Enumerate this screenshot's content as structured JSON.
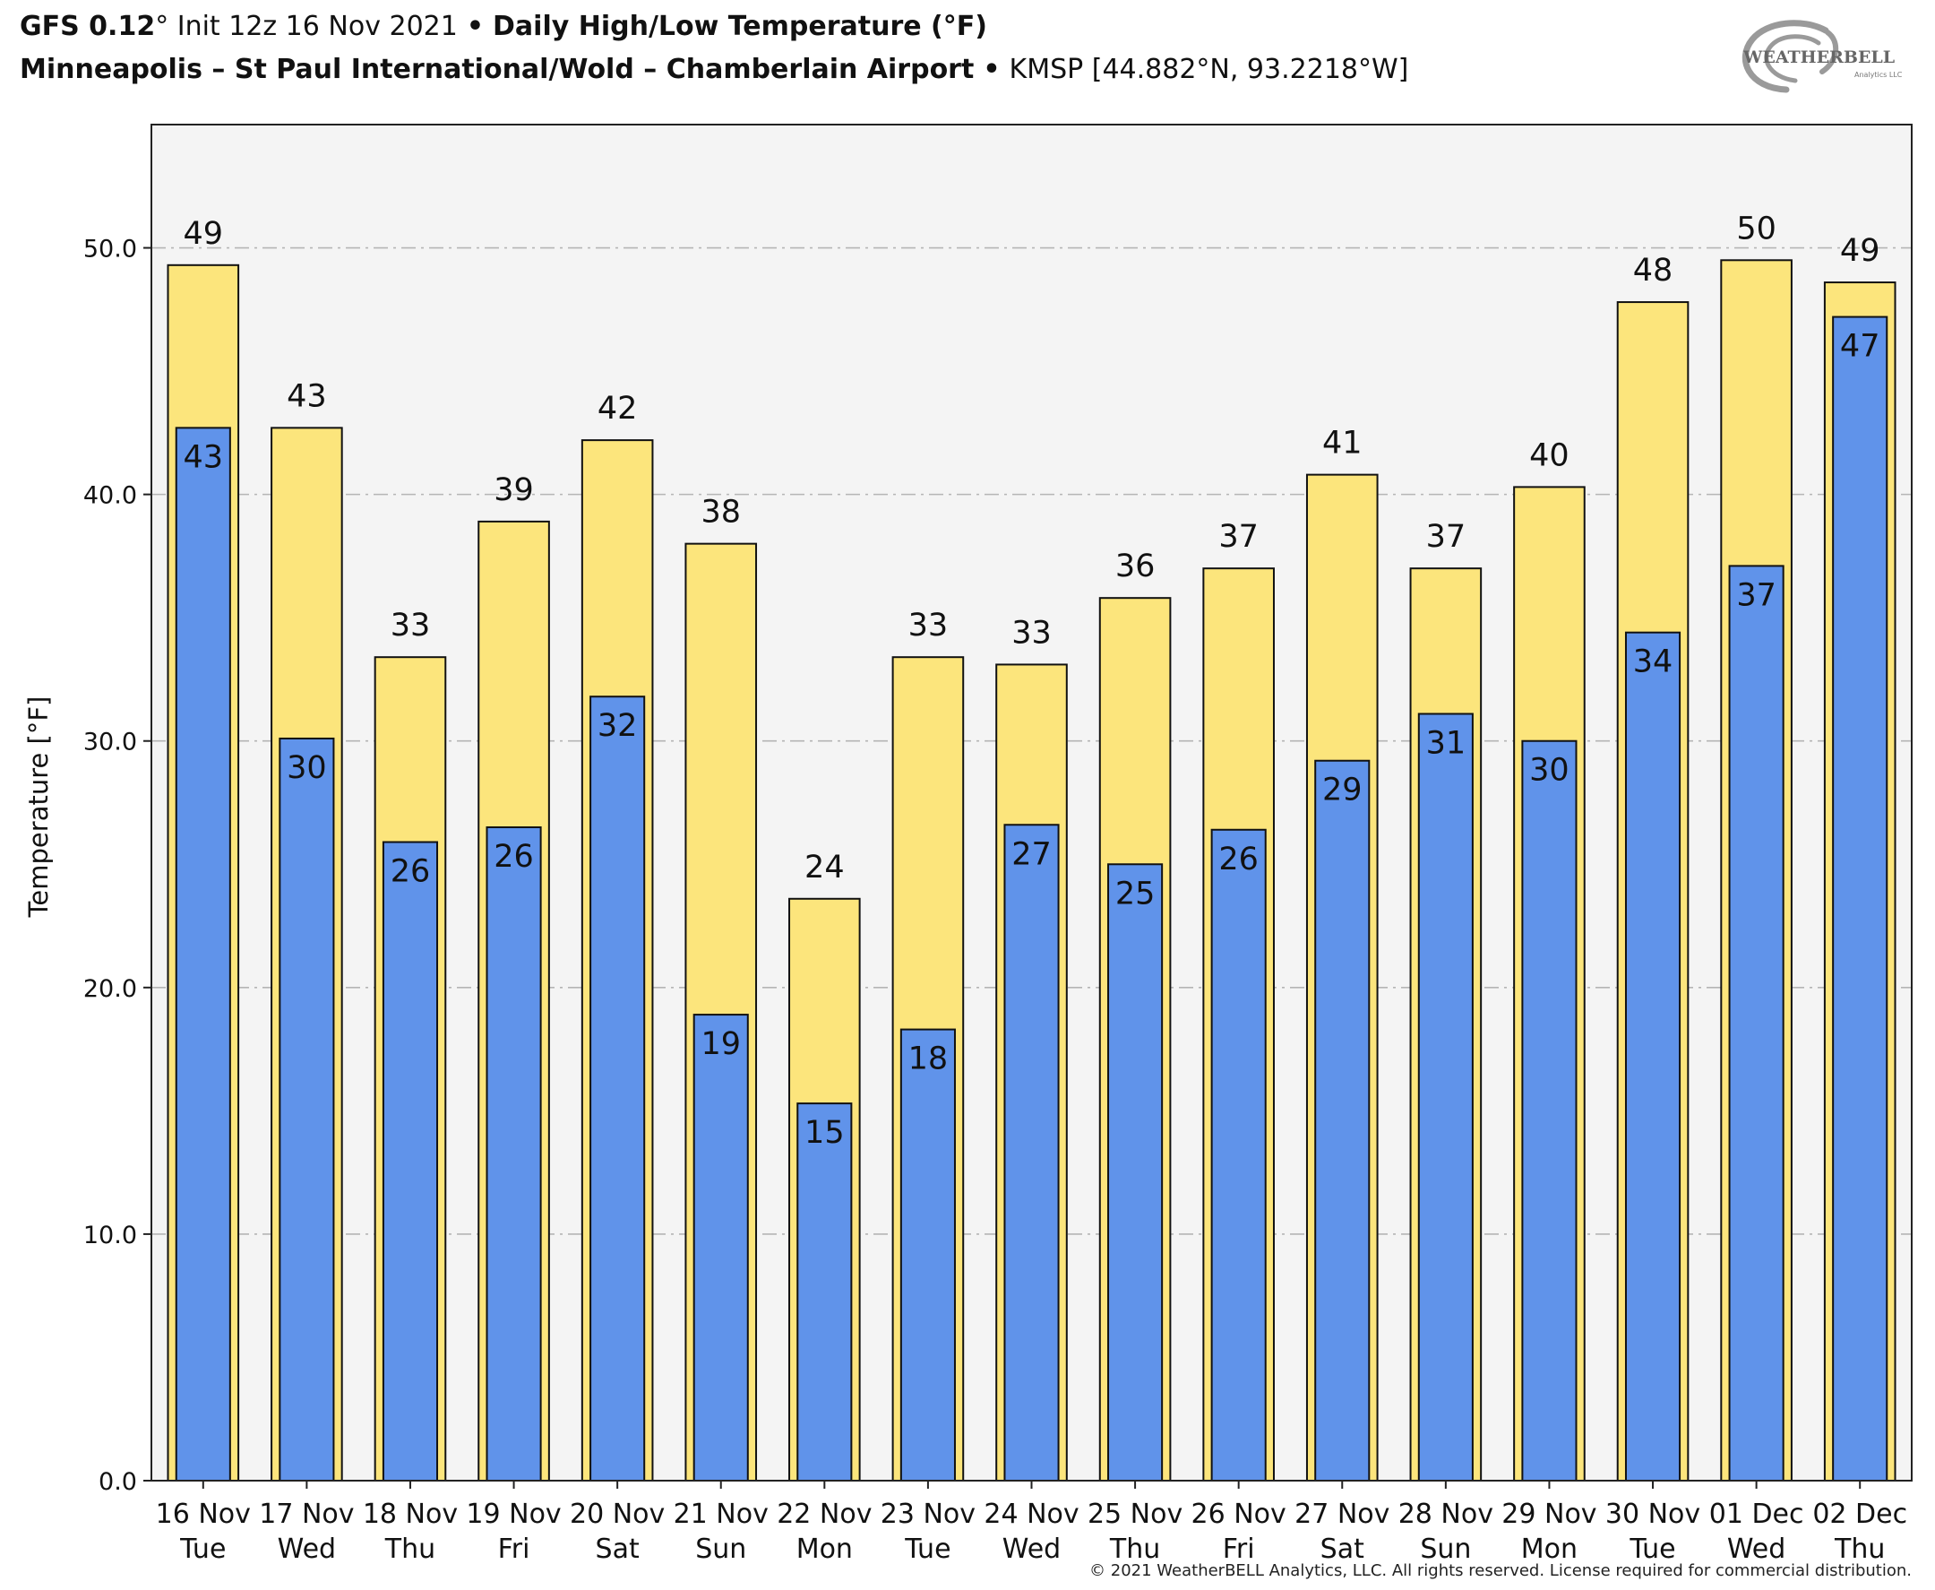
{
  "header": {
    "model": "GFS 0.12",
    "model_degree": "°",
    "init": "Init 12z 16 Nov 2021",
    "bullet": "•",
    "product": "Daily High/Low Temperature (°F)",
    "location": "Minneapolis – St Paul International/Wold – Chamberlain Airport",
    "station": "KMSP [44.882°N, 93.2218°W]"
  },
  "logo": {
    "text_main": "WEATHERBELL",
    "text_sub": "Analytics LLC"
  },
  "footer": {
    "copyright": "© 2021 WeatherBELL Analytics, LLC. All rights reserved. License required for commercial distribution."
  },
  "chart_data": {
    "type": "bar",
    "ylabel": "Temperature [°F]",
    "xlabel": "",
    "ylim": [
      0,
      55
    ],
    "yticks": [
      "0.0",
      "10.0",
      "20.0",
      "30.0",
      "40.0",
      "50.0"
    ],
    "ytick_values": [
      0,
      10,
      20,
      30,
      40,
      50
    ],
    "grid": true,
    "categories": [
      {
        "date": "16 Nov",
        "day": "Tue"
      },
      {
        "date": "17 Nov",
        "day": "Wed"
      },
      {
        "date": "18 Nov",
        "day": "Thu"
      },
      {
        "date": "19 Nov",
        "day": "Fri"
      },
      {
        "date": "20 Nov",
        "day": "Sat"
      },
      {
        "date": "21 Nov",
        "day": "Sun"
      },
      {
        "date": "22 Nov",
        "day": "Mon"
      },
      {
        "date": "23 Nov",
        "day": "Tue"
      },
      {
        "date": "24 Nov",
        "day": "Wed"
      },
      {
        "date": "25 Nov",
        "day": "Thu"
      },
      {
        "date": "26 Nov",
        "day": "Fri"
      },
      {
        "date": "27 Nov",
        "day": "Sat"
      },
      {
        "date": "28 Nov",
        "day": "Sun"
      },
      {
        "date": "29 Nov",
        "day": "Mon"
      },
      {
        "date": "30 Nov",
        "day": "Tue"
      },
      {
        "date": "01 Dec",
        "day": "Wed"
      },
      {
        "date": "02 Dec",
        "day": "Thu"
      }
    ],
    "series": [
      {
        "color": "#fce57c",
        "values": [
          49.3,
          42.7,
          33.4,
          38.9,
          42.2,
          38.0,
          23.6,
          33.4,
          33.1,
          35.8,
          37.0,
          40.8,
          37.0,
          40.3,
          47.8,
          49.5,
          48.6
        ],
        "labels": [
          "49",
          "43",
          "33",
          "39",
          "42",
          "38",
          "24",
          "33",
          "33",
          "36",
          "37",
          "41",
          "37",
          "40",
          "48",
          "50",
          "49"
        ]
      },
      {
        "color": "#6093ea",
        "values": [
          42.7,
          30.1,
          25.9,
          26.5,
          31.8,
          18.9,
          15.3,
          18.3,
          26.6,
          25.0,
          26.4,
          29.2,
          31.1,
          30.0,
          34.4,
          37.1,
          47.2
        ],
        "labels": [
          "43",
          "30",
          "26",
          "26",
          "32",
          "19",
          "15",
          "18",
          "27",
          "25",
          "26",
          "29",
          "31",
          "30",
          "34",
          "37",
          "47"
        ]
      }
    ]
  }
}
